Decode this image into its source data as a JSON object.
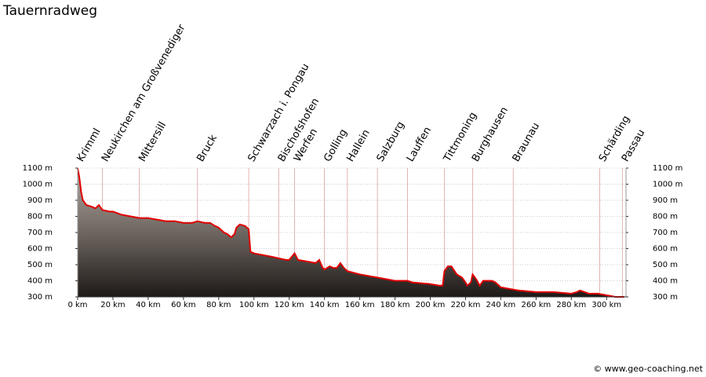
{
  "chart_data": {
    "type": "area",
    "title": "Tauernradweg",
    "x": [
      0,
      1,
      2,
      3,
      5,
      8,
      10,
      12,
      14,
      18,
      20,
      25,
      30,
      35,
      40,
      45,
      50,
      55,
      60,
      65,
      68,
      72,
      75,
      78,
      80,
      83,
      85,
      87,
      89,
      90,
      92,
      95,
      97,
      98,
      100,
      105,
      110,
      114,
      118,
      120,
      123,
      125,
      130,
      135,
      137,
      139,
      140,
      143,
      145,
      147,
      149,
      151,
      153,
      160,
      170,
      180,
      185,
      187,
      190,
      200,
      205,
      207,
      208,
      210,
      212,
      215,
      218,
      220,
      221,
      223,
      224,
      226,
      228,
      230,
      235,
      237,
      240,
      245,
      250,
      260,
      270,
      280,
      283,
      285,
      290,
      295,
      300,
      305,
      310
    ],
    "values": [
      1100,
      1040,
      950,
      900,
      870,
      860,
      850,
      870,
      840,
      830,
      830,
      810,
      800,
      790,
      790,
      780,
      770,
      770,
      760,
      760,
      770,
      760,
      760,
      740,
      730,
      700,
      690,
      670,
      690,
      730,
      750,
      740,
      720,
      580,
      570,
      560,
      550,
      540,
      530,
      530,
      570,
      530,
      520,
      510,
      530,
      480,
      470,
      490,
      480,
      480,
      510,
      480,
      460,
      440,
      420,
      400,
      400,
      400,
      390,
      380,
      370,
      370,
      460,
      490,
      490,
      440,
      420,
      390,
      370,
      390,
      440,
      410,
      370,
      400,
      400,
      390,
      360,
      350,
      340,
      330,
      330,
      320,
      330,
      340,
      320,
      320,
      310,
      300,
      300
    ],
    "color": "#e00000",
    "places": [
      {
        "name": "Krimml",
        "x": 0
      },
      {
        "name": "Neukirchen am Großvenediger",
        "x": 14
      },
      {
        "name": "Mittersill",
        "x": 35
      },
      {
        "name": "Bruck",
        "x": 68
      },
      {
        "name": "Schwarzach i. Pongau",
        "x": 97
      },
      {
        "name": "Bischofshofen",
        "x": 114
      },
      {
        "name": "Werfen",
        "x": 123
      },
      {
        "name": "Golling",
        "x": 140
      },
      {
        "name": "Hallein",
        "x": 153
      },
      {
        "name": "Salzburg",
        "x": 170
      },
      {
        "name": "Lauffen",
        "x": 187
      },
      {
        "name": "Tittmoning",
        "x": 208
      },
      {
        "name": "Burghausen",
        "x": 224
      },
      {
        "name": "Braunau",
        "x": 247
      },
      {
        "name": "Schärding",
        "x": 296
      },
      {
        "name": "Passau",
        "x": 309
      }
    ],
    "xlim": [
      0,
      311
    ],
    "ylim": [
      300,
      1100
    ],
    "xticks": [
      {
        "value": 0,
        "label": "0 km"
      },
      {
        "value": 20,
        "label": "20 km"
      },
      {
        "value": 40,
        "label": "40 km"
      },
      {
        "value": 60,
        "label": "60 km"
      },
      {
        "value": 80,
        "label": "80 km"
      },
      {
        "value": 100,
        "label": "100 km"
      },
      {
        "value": 120,
        "label": "120 km"
      },
      {
        "value": 140,
        "label": "140 km"
      },
      {
        "value": 160,
        "label": "160 km"
      },
      {
        "value": 180,
        "label": "180 km"
      },
      {
        "value": 200,
        "label": "200 km"
      },
      {
        "value": 220,
        "label": "220 km"
      },
      {
        "value": 240,
        "label": "240 km"
      },
      {
        "value": 260,
        "label": "260 km"
      },
      {
        "value": 280,
        "label": "280 km"
      },
      {
        "value": 300,
        "label": "300 km"
      }
    ],
    "yticks": [
      {
        "value": 300,
        "label": "300 m"
      },
      {
        "value": 400,
        "label": "400 m"
      },
      {
        "value": 500,
        "label": "500 m"
      },
      {
        "value": 600,
        "label": "600 m"
      },
      {
        "value": 700,
        "label": "700 m"
      },
      {
        "value": 800,
        "label": "800 m"
      },
      {
        "value": 900,
        "label": "900 m"
      },
      {
        "value": 1000,
        "label": "1000 m"
      },
      {
        "value": 1100,
        "label": "1100 m"
      }
    ],
    "grid": true
  },
  "footer": "© www.geo-coaching.net"
}
